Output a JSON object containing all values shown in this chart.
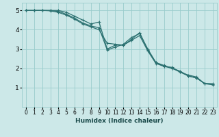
{
  "xlabel": "Humidex (Indice chaleur)",
  "ylabel": "",
  "bg_color": "#cce8e8",
  "line_color": "#2a7070",
  "grid_color": "#99cccc",
  "xlim": [
    -0.5,
    23.5
  ],
  "ylim": [
    0,
    5.4
  ],
  "yticks": [
    1,
    2,
    3,
    4,
    5
  ],
  "xticks": [
    0,
    1,
    2,
    3,
    4,
    5,
    6,
    7,
    8,
    9,
    10,
    11,
    12,
    13,
    14,
    15,
    16,
    17,
    18,
    19,
    20,
    21,
    22,
    23
  ],
  "lines": [
    {
      "x": [
        0,
        1,
        2,
        3,
        4,
        5,
        6,
        7,
        8,
        9,
        10,
        11,
        12,
        13,
        14,
        15,
        16,
        17,
        18,
        19,
        20,
        21,
        22,
        23
      ],
      "y": [
        5.0,
        5.0,
        5.0,
        5.0,
        5.0,
        4.9,
        4.7,
        4.5,
        4.3,
        4.4,
        3.0,
        3.2,
        3.2,
        3.5,
        3.85,
        2.95,
        2.3,
        2.1,
        2.05,
        1.8,
        1.65,
        1.55,
        1.2,
        1.15
      ]
    },
    {
      "x": [
        0,
        1,
        2,
        3,
        4,
        5,
        6,
        7,
        8,
        9,
        10,
        11,
        12,
        13,
        14,
        15,
        16,
        17,
        18,
        19,
        20,
        21,
        22,
        23
      ],
      "y": [
        5.0,
        5.0,
        5.0,
        5.0,
        4.95,
        4.8,
        4.6,
        4.35,
        4.2,
        4.1,
        2.95,
        3.1,
        3.25,
        3.6,
        3.8,
        3.0,
        2.3,
        2.15,
        2.0,
        1.85,
        1.6,
        1.5,
        1.22,
        1.2
      ]
    },
    {
      "x": [
        0,
        1,
        2,
        3,
        4,
        5,
        6,
        7,
        8,
        9,
        10,
        11,
        12,
        13,
        14,
        15,
        16,
        17,
        18,
        19,
        20,
        21,
        22,
        23
      ],
      "y": [
        5.0,
        5.0,
        5.0,
        4.98,
        4.9,
        4.75,
        4.55,
        4.3,
        4.15,
        4.0,
        3.3,
        3.25,
        3.2,
        3.45,
        3.7,
        2.9,
        2.25,
        2.1,
        2.0,
        1.8,
        1.6,
        1.5,
        1.2,
        1.18
      ]
    }
  ],
  "xlabel_fontsize": 6.5,
  "xlabel_fontweight": "bold",
  "tick_fontsize": 5.5,
  "ytick_fontsize": 6.5,
  "marker_size": 3.0,
  "linewidth": 0.9
}
